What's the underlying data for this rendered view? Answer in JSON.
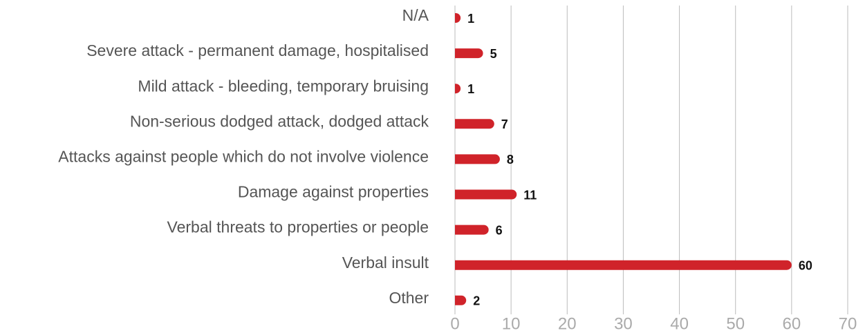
{
  "chart_data": {
    "type": "bar",
    "orientation": "horizontal",
    "categories": [
      "N/A",
      "Severe attack - permanent damage, hospitalised",
      "Mild attack - bleeding, temporary bruising",
      "Non-serious dodged attack, dodged attack",
      "Attacks against people which do not involve violence",
      "Damage against properties",
      "Verbal threats to properties or people",
      "Verbal insult",
      "Other"
    ],
    "values": [
      1,
      5,
      1,
      7,
      8,
      11,
      6,
      60,
      2
    ],
    "color": "#d0232a",
    "xlim": [
      0,
      70
    ],
    "xticks": [
      0,
      10,
      20,
      30,
      40,
      50,
      60,
      70
    ],
    "grid": true
  }
}
